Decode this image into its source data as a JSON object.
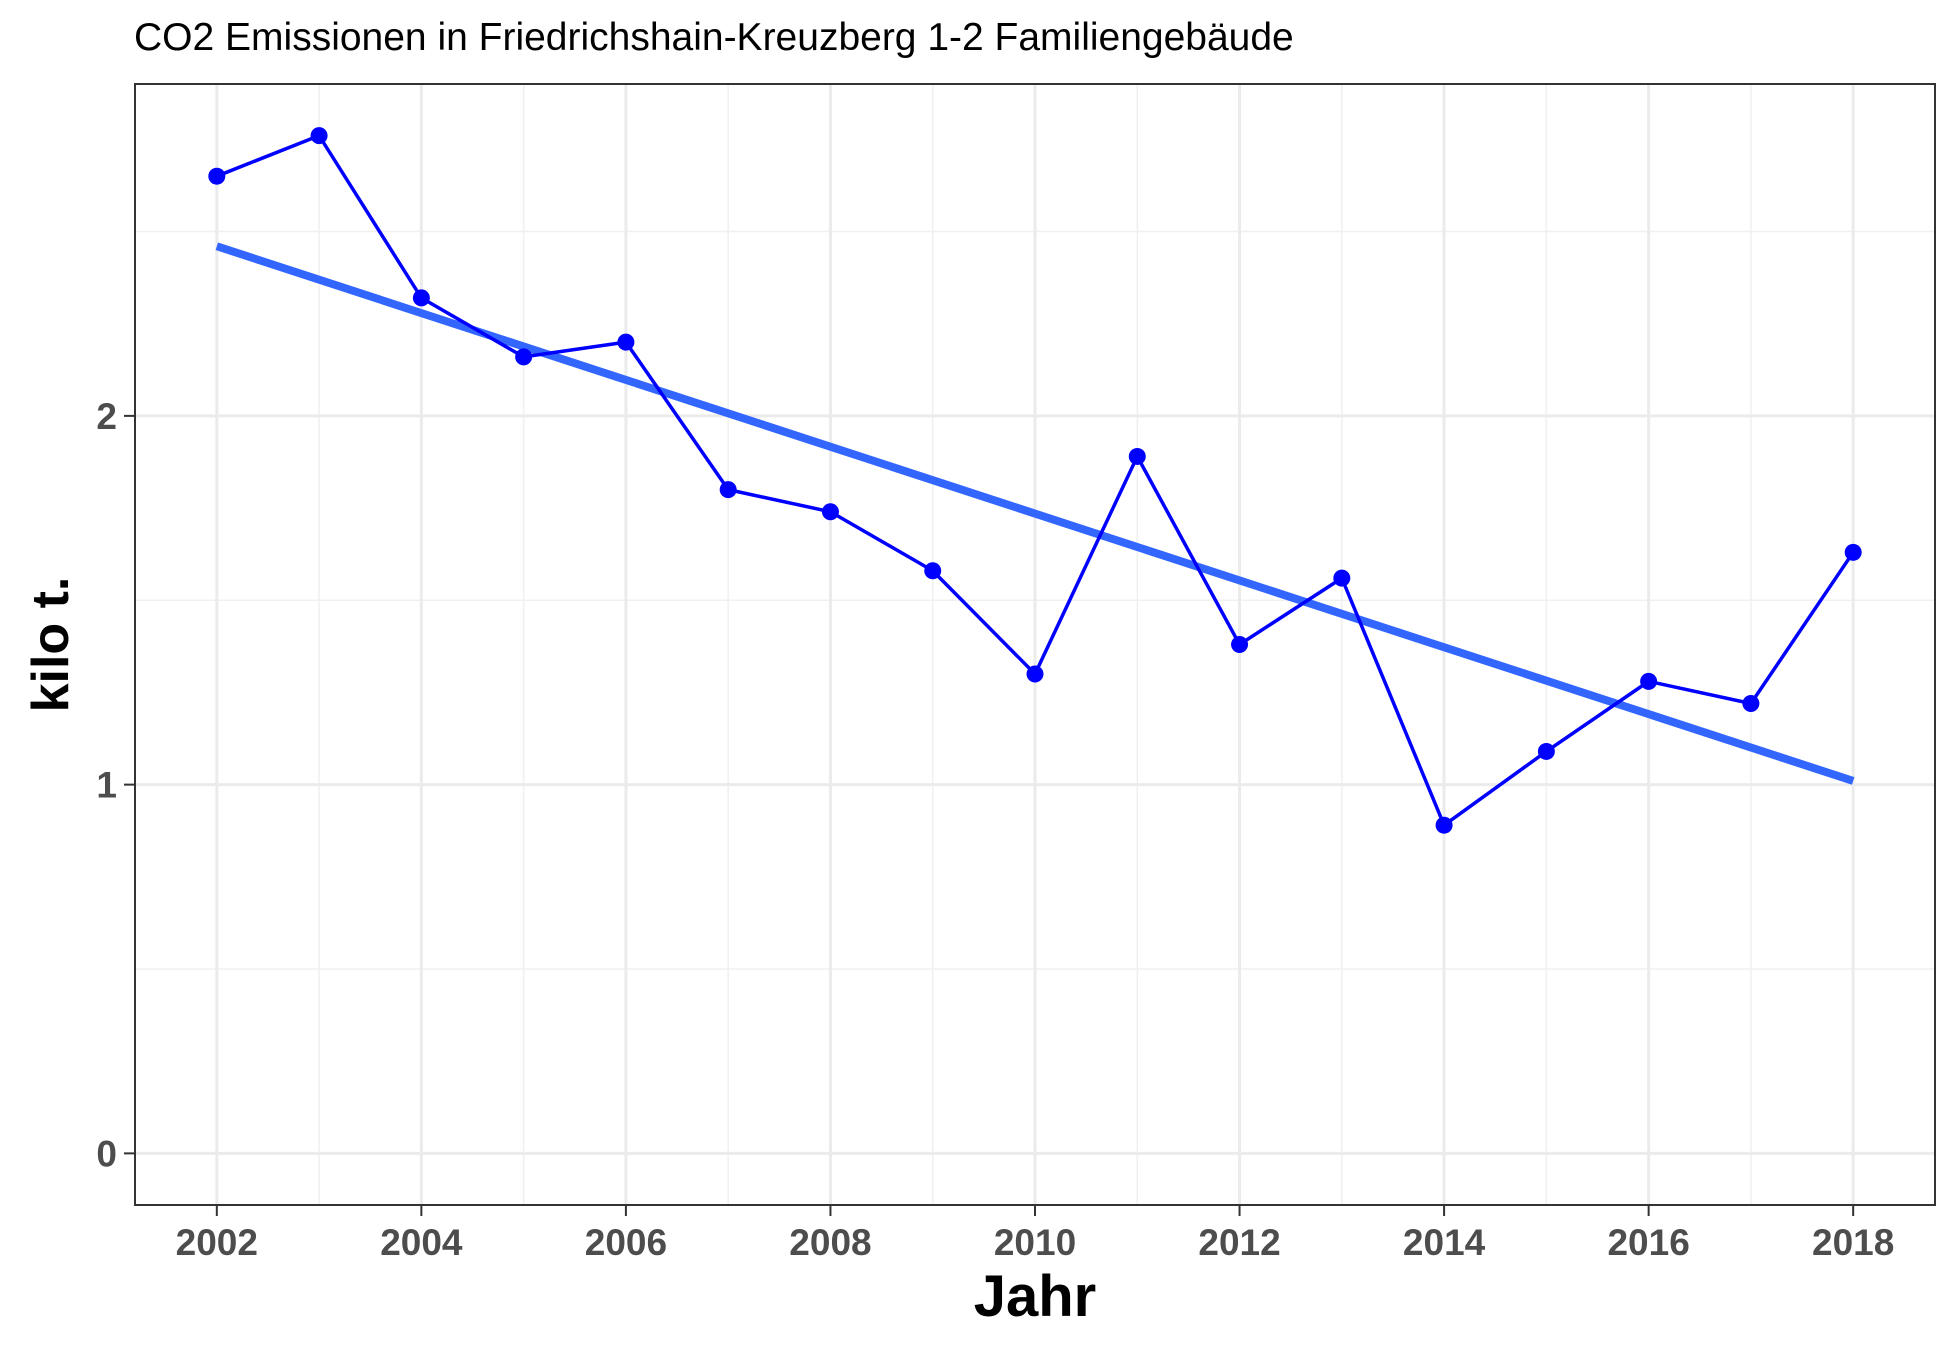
{
  "chart_data": {
    "type": "line",
    "title": "CO2 Emissionen in Friedrichshain-Kreuzberg 1-2 Familiengebäude",
    "xlabel": "Jahr",
    "ylabel": "kilo t.",
    "xlim": [
      2001.2,
      2018.8
    ],
    "ylim": [
      -0.14,
      2.9
    ],
    "x_ticks": [
      2002,
      2004,
      2006,
      2008,
      2010,
      2012,
      2014,
      2016,
      2018
    ],
    "x_tick_labels": [
      "2002",
      "2004",
      "2006",
      "2008",
      "2010",
      "2012",
      "2014",
      "2016",
      "2018"
    ],
    "y_ticks": [
      0,
      1,
      2
    ],
    "y_tick_labels": [
      "0",
      "1",
      "2"
    ],
    "grid": true,
    "legend": "none",
    "series": [
      {
        "x": [
          2002,
          2003,
          2004,
          2005,
          2006,
          2007,
          2008,
          2009,
          2010,
          2011,
          2012,
          2013,
          2014,
          2015,
          2016,
          2017,
          2018
        ],
        "y": [
          2.65,
          2.76,
          2.32,
          2.16,
          2.2,
          1.8,
          1.74,
          1.58,
          1.3,
          1.89,
          1.38,
          1.56,
          0.89,
          1.09,
          1.28,
          1.22,
          1.63
        ],
        "color": "#0000ff",
        "markers": true
      }
    ],
    "trend_line": {
      "method": "linear",
      "color": "#3366ff",
      "x": [
        2002,
        2018
      ],
      "y": [
        2.46,
        1.01
      ]
    }
  }
}
